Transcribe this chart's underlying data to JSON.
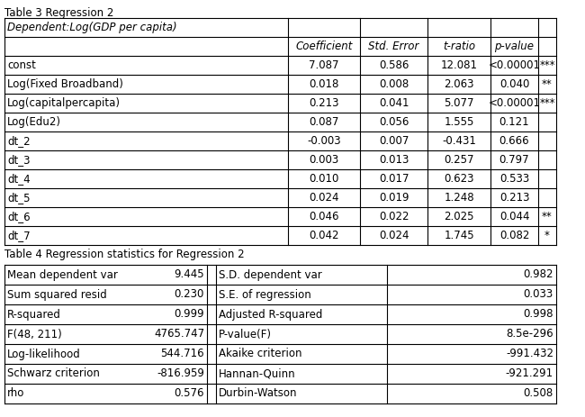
{
  "title": "Table 3 Regression 2",
  "reg_table_header": [
    "",
    "Coefficient",
    "Std. Error",
    "t-ratio",
    "p-value",
    ""
  ],
  "reg_rows": [
    [
      "const",
      "7.087",
      "0.586",
      "12.081",
      "<0.00001",
      "***"
    ],
    [
      "Log(Fixed Broadband)",
      "0.018",
      "0.008",
      "2.063",
      "0.040",
      "**"
    ],
    [
      "Log(capitalpercapita)",
      "0.213",
      "0.041",
      "5.077",
      "<0.00001",
      "***"
    ],
    [
      "Log(Edu2)",
      "0.087",
      "0.056",
      "1.555",
      "0.121",
      ""
    ],
    [
      "dt_2",
      "-0.003",
      "0.007",
      "-0.431",
      "0.666",
      ""
    ],
    [
      "dt_3",
      "0.003",
      "0.013",
      "0.257",
      "0.797",
      ""
    ],
    [
      "dt_4",
      "0.010",
      "0.017",
      "0.623",
      "0.533",
      ""
    ],
    [
      "dt_5",
      "0.024",
      "0.019",
      "1.248",
      "0.213",
      ""
    ],
    [
      "dt_6",
      "0.046",
      "0.022",
      "2.025",
      "0.044",
      "**"
    ],
    [
      "dt_7",
      "0.042",
      "0.024",
      "1.745",
      "0.082",
      "*"
    ]
  ],
  "dep_var_label": "Dependent:Log(GDP per capita)",
  "stats_caption": "Table 4 Regression statistics for Regression 2",
  "stats_rows": [
    [
      "Mean dependent var",
      "9.445",
      "S.D. dependent var",
      "0.982"
    ],
    [
      "Sum squared resid",
      "0.230",
      "S.E. of regression",
      "0.033"
    ],
    [
      "R-squared",
      "0.999",
      "Adjusted R-squared",
      "0.998"
    ],
    [
      "F(48, 211)",
      "4765.747",
      "P-value(F)",
      "8.5e-296"
    ],
    [
      "Log-likelihood",
      "544.716",
      "Akaike criterion",
      "-991.432"
    ],
    [
      "Schwarz criterion",
      "-816.959",
      "Hannan-Quinn",
      "-921.291"
    ],
    [
      "rho",
      "0.576",
      "Durbin-Watson",
      "0.508"
    ]
  ],
  "bg_color": "#ffffff",
  "text_color": "#000000",
  "line_color": "#000000",
  "font_size": 8.5,
  "title_font_size": 8.5
}
